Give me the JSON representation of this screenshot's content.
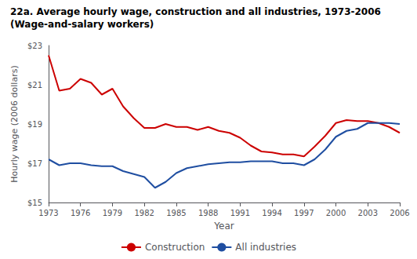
{
  "chart_data": {
    "type": "line",
    "title": "22a. Average hourly wage, construction and all industries, 1973-2006",
    "subtitle": "(Wage-and-salary workers)",
    "x_label": "Year",
    "y_label": "Hourly wage (2006 dollars)",
    "x": [
      1973,
      1974,
      1975,
      1976,
      1977,
      1978,
      1979,
      1980,
      1981,
      1982,
      1983,
      1984,
      1985,
      1986,
      1987,
      1988,
      1989,
      1990,
      1991,
      1992,
      1993,
      1994,
      1995,
      1996,
      1997,
      1998,
      1999,
      2000,
      2001,
      2002,
      2003,
      2004,
      2005,
      2006
    ],
    "series": [
      {
        "name": "Construction",
        "color": "#cc0000",
        "values": [
          22.5,
          20.7,
          20.8,
          21.3,
          21.1,
          20.5,
          20.8,
          19.9,
          19.3,
          18.8,
          18.8,
          19.0,
          18.85,
          18.85,
          18.7,
          18.85,
          18.65,
          18.55,
          18.3,
          17.9,
          17.6,
          17.55,
          17.45,
          17.45,
          17.35,
          17.85,
          18.4,
          19.05,
          19.2,
          19.15,
          19.15,
          19.05,
          18.85,
          18.55
        ]
      },
      {
        "name": "All industries",
        "color": "#1f4ea1",
        "values": [
          17.2,
          16.9,
          17.0,
          17.0,
          16.9,
          16.85,
          16.85,
          16.6,
          16.45,
          16.3,
          15.75,
          16.05,
          16.5,
          16.75,
          16.85,
          16.95,
          17.0,
          17.05,
          17.05,
          17.1,
          17.1,
          17.1,
          17.0,
          17.0,
          16.9,
          17.2,
          17.7,
          18.35,
          18.65,
          18.75,
          19.05,
          19.05,
          19.05,
          19.0
        ]
      }
    ],
    "xlim": [
      1973,
      2006
    ],
    "xticks": [
      1973,
      1976,
      1979,
      1982,
      1985,
      1988,
      1991,
      1994,
      1997,
      2000,
      2003,
      2006
    ],
    "ylim": [
      15,
      23
    ],
    "yticks": [
      {
        "value": 15,
        "label": "$15"
      },
      {
        "value": 17,
        "label": "$17"
      },
      {
        "value": 19,
        "label": "$19"
      },
      {
        "value": 21,
        "label": "$21"
      },
      {
        "value": 23,
        "label": "$23"
      }
    ],
    "grid": false,
    "legend": "bottom"
  }
}
